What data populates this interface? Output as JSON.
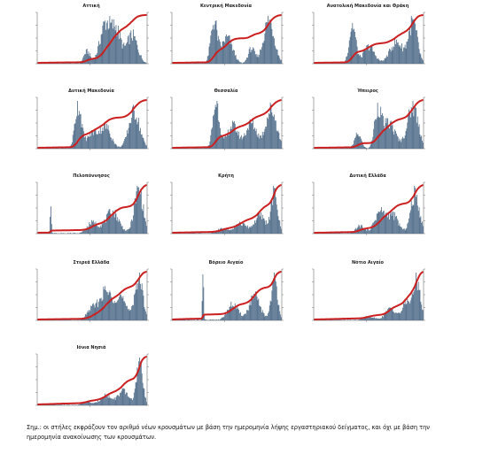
{
  "colors": {
    "bars": "#4d6a87",
    "line": "#cc1f1f",
    "axis": "#555555"
  },
  "chart_data": [
    {
      "type": "bar",
      "title": "Αττική",
      "series_shape": "attiki"
    },
    {
      "type": "bar",
      "title": "Κεντρική Μακεδονία",
      "series_shape": "kmak"
    },
    {
      "type": "bar",
      "title": "Ανατολική Μακεδονία και Θράκη",
      "series_shape": "amth"
    },
    {
      "type": "bar",
      "title": "Δυτική Μακεδονία",
      "series_shape": "dmak"
    },
    {
      "type": "bar",
      "title": "Θεσσαλία",
      "series_shape": "thes"
    },
    {
      "type": "bar",
      "title": "Ήπειρος",
      "series_shape": "ipeiros"
    },
    {
      "type": "bar",
      "title": "Πελοπόννησος",
      "series_shape": "pelop"
    },
    {
      "type": "bar",
      "title": "Κρήτη",
      "series_shape": "kriti"
    },
    {
      "type": "bar",
      "title": "Δυτική Ελλάδα",
      "series_shape": "dell"
    },
    {
      "type": "bar",
      "title": "Στερεά Ελλάδα",
      "series_shape": "stell"
    },
    {
      "type": "bar",
      "title": "Βόρειο Αιγαίο",
      "series_shape": "vaig"
    },
    {
      "type": "bar",
      "title": "Νότιο Αιγαίο",
      "series_shape": "naig"
    },
    {
      "type": "bar",
      "title": "Ιόνια Νησιά",
      "series_shape": "ionia"
    }
  ],
  "footnote": {
    "line1": "Σημ.: οι στήλες εκφράζουν τον αριθμό νέων κρουσμάτων με βάση την ημερομηνία λήψης εργαστηριακού δείγματος, και όχι με βάση την",
    "line2": "ημερομηνία ανακοίνωσης των κρουσμάτων."
  }
}
